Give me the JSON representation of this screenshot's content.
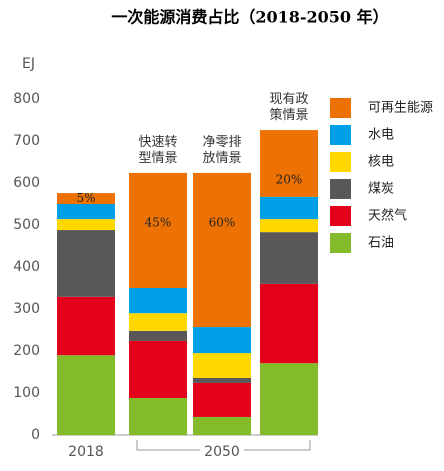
{
  "chart_data": {
    "type": "stacked_bar",
    "title": "一次能源消费占比（2018-2050 年）",
    "y_label": "EJ",
    "categories": [
      "2018",
      "快速转型情景",
      "净零排放情景",
      "现有政策情景"
    ],
    "x_group_label": "2050",
    "share_labels": [
      "5%",
      "45%",
      "60%",
      "20%"
    ],
    "series": [
      {
        "name": "石油",
        "color": "#84bb2a",
        "values": [
          190,
          88,
          43,
          171
        ]
      },
      {
        "name": "天然气",
        "color": "#e2001a",
        "values": [
          139,
          136,
          81,
          189
        ]
      },
      {
        "name": "煤炭",
        "color": "#595757",
        "values": [
          159,
          24,
          12,
          123
        ]
      },
      {
        "name": "核电",
        "color": "#ffd800",
        "values": [
          26,
          42,
          59,
          31
        ]
      },
      {
        "name": "水电",
        "color": "#00a0e9",
        "values": [
          36,
          60,
          62,
          53
        ]
      },
      {
        "name": "可再生能源",
        "color": "#ee7203",
        "values": [
          26,
          274,
          367,
          159
        ]
      }
    ],
    "ylim": [
      0,
      800
    ],
    "yticks": [
      0,
      100,
      200,
      300,
      400,
      500,
      600,
      700,
      800
    ],
    "grid": false
  }
}
